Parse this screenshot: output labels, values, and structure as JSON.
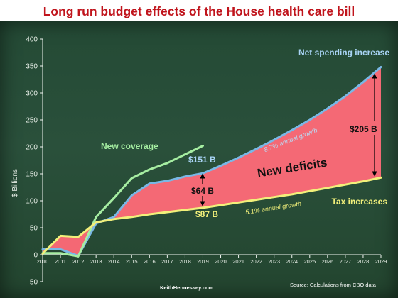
{
  "title": "Long run budget effects of the House health care bill",
  "chart_data": {
    "type": "line",
    "ylabel": "$ Billions",
    "ylim": [
      -50,
      400
    ],
    "yticks": [
      -50,
      0,
      50,
      100,
      150,
      200,
      250,
      300,
      350,
      400
    ],
    "x": [
      2010,
      2011,
      2012,
      2013,
      2014,
      2015,
      2016,
      2017,
      2018,
      2019,
      2020,
      2021,
      2022,
      2023,
      2024,
      2025,
      2026,
      2027,
      2028,
      2029
    ],
    "series": [
      {
        "name": "Net spending increase",
        "color": "#79b8e6",
        "values": [
          10,
          10,
          -2,
          58,
          70,
          110,
          132,
          137,
          145,
          151,
          165,
          180,
          196,
          213,
          231,
          250,
          271,
          294,
          320,
          348
        ]
      },
      {
        "name": "New coverage",
        "color": "#a6eea2",
        "values": [
          3,
          3,
          -3,
          70,
          105,
          142,
          158,
          170,
          186,
          202,
          null,
          null,
          null,
          null,
          null,
          null,
          null,
          null,
          null,
          null
        ]
      },
      {
        "name": "Tax increases",
        "color": "#f2f07a",
        "values": [
          2,
          35,
          33,
          60,
          66,
          70,
          75,
          79,
          83,
          87,
          92,
          97,
          102,
          107,
          112,
          118,
          124,
          130,
          136,
          143
        ]
      }
    ],
    "shaded_region": {
      "label": "New deficits",
      "color": "#ff6a78",
      "between": [
        "Net spending increase",
        "Tax increases"
      ]
    },
    "annotations": {
      "net_spending_label": "Net spending increase",
      "new_coverage_label": "New coverage",
      "tax_increases_label": "Tax increases",
      "new_deficits_label": "New deficits",
      "net_2019": "$151 B",
      "gap_2019": "$64 B",
      "tax_2019": "$87 B",
      "gap_2029": "$205 B",
      "growth_spending": "8.7% annual growth",
      "growth_tax": "5.1% annual growth"
    },
    "source": "Source:  Calculations from CBO data",
    "credit": "KeithHennessey.com",
    "grid": false
  }
}
